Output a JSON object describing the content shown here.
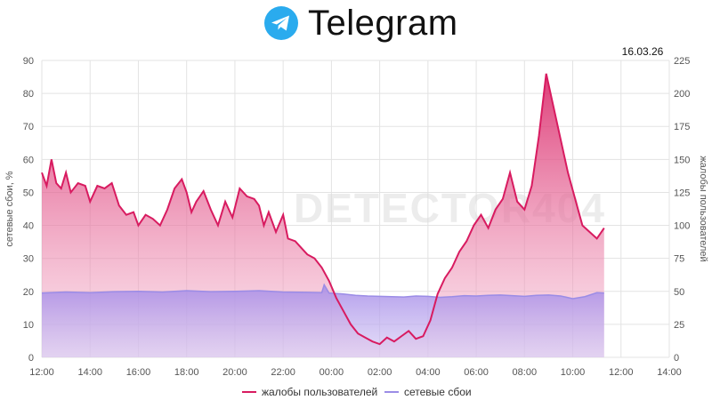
{
  "header": {
    "app_name": "Telegram",
    "logo_icon": "telegram-paper-plane-icon",
    "brand_color": "#2AABEE"
  },
  "watermark": "DETECTOR404",
  "chart_data": {
    "type": "area",
    "date_label": "16.03.26",
    "x_ticks": [
      "12:00",
      "14:00",
      "16:00",
      "18:00",
      "20:00",
      "22:00",
      "00:00",
      "02:00",
      "04:00",
      "06:00",
      "08:00",
      "10:00",
      "12:00",
      "14:00"
    ],
    "left_axis": {
      "label": "сетевые сбои, %",
      "ticks": [
        0,
        10,
        20,
        30,
        40,
        50,
        60,
        70,
        80,
        90
      ],
      "ylim": [
        0,
        90
      ]
    },
    "right_axis": {
      "label": "жалобы пользователей",
      "ticks": [
        0,
        25,
        50,
        75,
        100,
        125,
        150,
        175,
        200,
        225
      ],
      "ylim": [
        0,
        225
      ]
    },
    "grid": true,
    "legend_position": "bottom",
    "series": [
      {
        "name": "жалобы пользователей",
        "axis": "right",
        "color": "#D81B60",
        "x": [
          12.0,
          12.2,
          12.4,
          12.6,
          12.8,
          13.0,
          13.2,
          13.5,
          13.8,
          14.0,
          14.3,
          14.6,
          14.9,
          15.2,
          15.5,
          15.8,
          16.0,
          16.3,
          16.6,
          16.9,
          17.2,
          17.5,
          17.8,
          18.0,
          18.2,
          18.4,
          18.7,
          19.0,
          19.3,
          19.6,
          19.9,
          20.2,
          20.5,
          20.8,
          21.0,
          21.2,
          21.4,
          21.7,
          22.0,
          22.2,
          22.5,
          22.8,
          23.0,
          23.3,
          23.6,
          23.9,
          24.2,
          24.5,
          24.8,
          25.1,
          25.4,
          25.7,
          26.0,
          26.3,
          26.6,
          26.9,
          27.2,
          27.5,
          27.8,
          28.1,
          28.4,
          28.7,
          29.0,
          29.3,
          29.6,
          29.9,
          30.2,
          30.5,
          30.8,
          31.1,
          31.4,
          31.7,
          32.0,
          32.3,
          32.6,
          32.9,
          33.2,
          33.5,
          33.8,
          34.1,
          34.4,
          34.7,
          35.0,
          35.3
        ],
        "values": [
          140,
          130,
          150,
          132,
          128,
          140,
          125,
          132,
          130,
          118,
          130,
          128,
          132,
          115,
          108,
          110,
          100,
          108,
          105,
          100,
          112,
          128,
          135,
          125,
          110,
          118,
          126,
          112,
          100,
          118,
          106,
          128,
          122,
          120,
          115,
          100,
          110,
          95,
          108,
          90,
          88,
          82,
          78,
          75,
          68,
          58,
          45,
          35,
          25,
          18,
          15,
          12,
          10,
          15,
          12,
          16,
          20,
          14,
          16,
          28,
          48,
          60,
          68,
          80,
          88,
          100,
          108,
          98,
          112,
          120,
          140,
          118,
          112,
          130,
          168,
          215,
          190,
          165,
          140,
          120,
          100,
          95,
          90,
          98
        ],
        "values_note_unit": "complaints"
      },
      {
        "name": "сетевые сбои",
        "axis": "left",
        "color": "#9B8CE6",
        "x": [
          12.0,
          13.0,
          14.0,
          15.0,
          16.0,
          17.0,
          18.0,
          19.0,
          20.0,
          21.0,
          22.0,
          23.0,
          23.6,
          23.7,
          23.9,
          24.5,
          25.0,
          25.5,
          26.0,
          26.5,
          27.0,
          27.5,
          28.0,
          28.5,
          29.0,
          29.5,
          30.0,
          30.5,
          31.0,
          31.5,
          32.0,
          32.5,
          33.0,
          33.5,
          34.0,
          34.5,
          35.0,
          35.3
        ],
        "values": [
          19.5,
          19.8,
          19.6,
          19.9,
          20.0,
          19.8,
          20.2,
          19.9,
          20.0,
          20.2,
          19.8,
          19.7,
          19.6,
          22.0,
          19.5,
          19.2,
          18.8,
          18.6,
          18.5,
          18.4,
          18.3,
          18.6,
          18.5,
          18.2,
          18.4,
          18.7,
          18.6,
          18.8,
          18.9,
          18.7,
          18.5,
          18.8,
          18.9,
          18.6,
          17.8,
          18.4,
          19.6,
          19.5
        ]
      }
    ],
    "x_unit": "hour (12:00 day 1 = 12, continuing past 24 into next day)"
  }
}
